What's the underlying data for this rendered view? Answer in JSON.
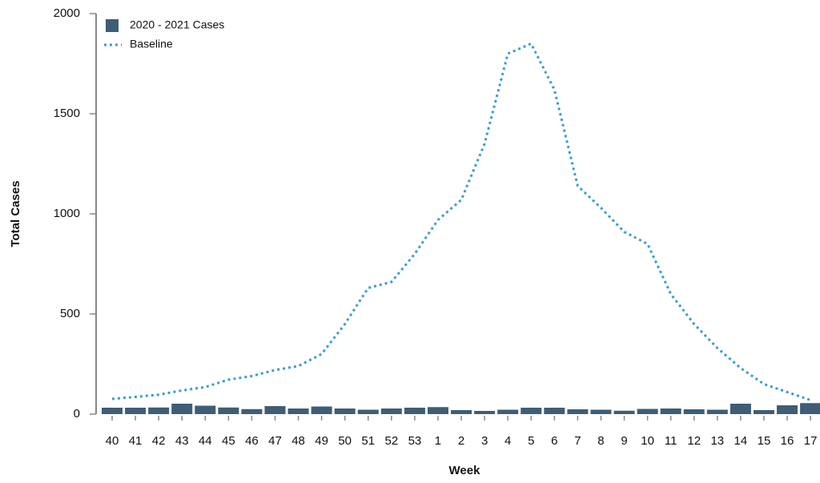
{
  "chart_data": {
    "type": "bar-line",
    "x_label": "Week",
    "y_label": "Total Cases",
    "categories": [
      "40",
      "41",
      "42",
      "43",
      "44",
      "45",
      "46",
      "47",
      "48",
      "49",
      "50",
      "51",
      "52",
      "53",
      "1",
      "2",
      "3",
      "4",
      "5",
      "6",
      "7",
      "8",
      "9",
      "10",
      "11",
      "12",
      "13",
      "14",
      "15",
      "16",
      "17"
    ],
    "series": [
      {
        "name": "2020 - 2021 Cases",
        "color": "#3f5d75",
        "kind": "bar",
        "values": [
          32,
          32,
          33,
          52,
          42,
          33,
          25,
          40,
          28,
          38,
          28,
          22,
          28,
          32,
          35,
          20,
          16,
          22,
          32,
          32,
          24,
          22,
          17,
          26,
          28,
          24,
          22,
          52,
          20,
          44,
          55
        ]
      },
      {
        "name": "Baseline",
        "color": "#3a9ad9",
        "kind": "line",
        "values": [
          76,
          86,
          97,
          118,
          135,
          172,
          190,
          220,
          240,
          300,
          450,
          630,
          660,
          800,
          970,
          1070,
          1350,
          1800,
          1850,
          1620,
          1140,
          1030,
          910,
          850,
          600,
          450,
          330,
          230,
          150,
          110,
          70
        ]
      }
    ],
    "ylim": [
      0,
      2000
    ],
    "yticks": [
      0,
      500,
      1000,
      1500,
      2000
    ]
  }
}
